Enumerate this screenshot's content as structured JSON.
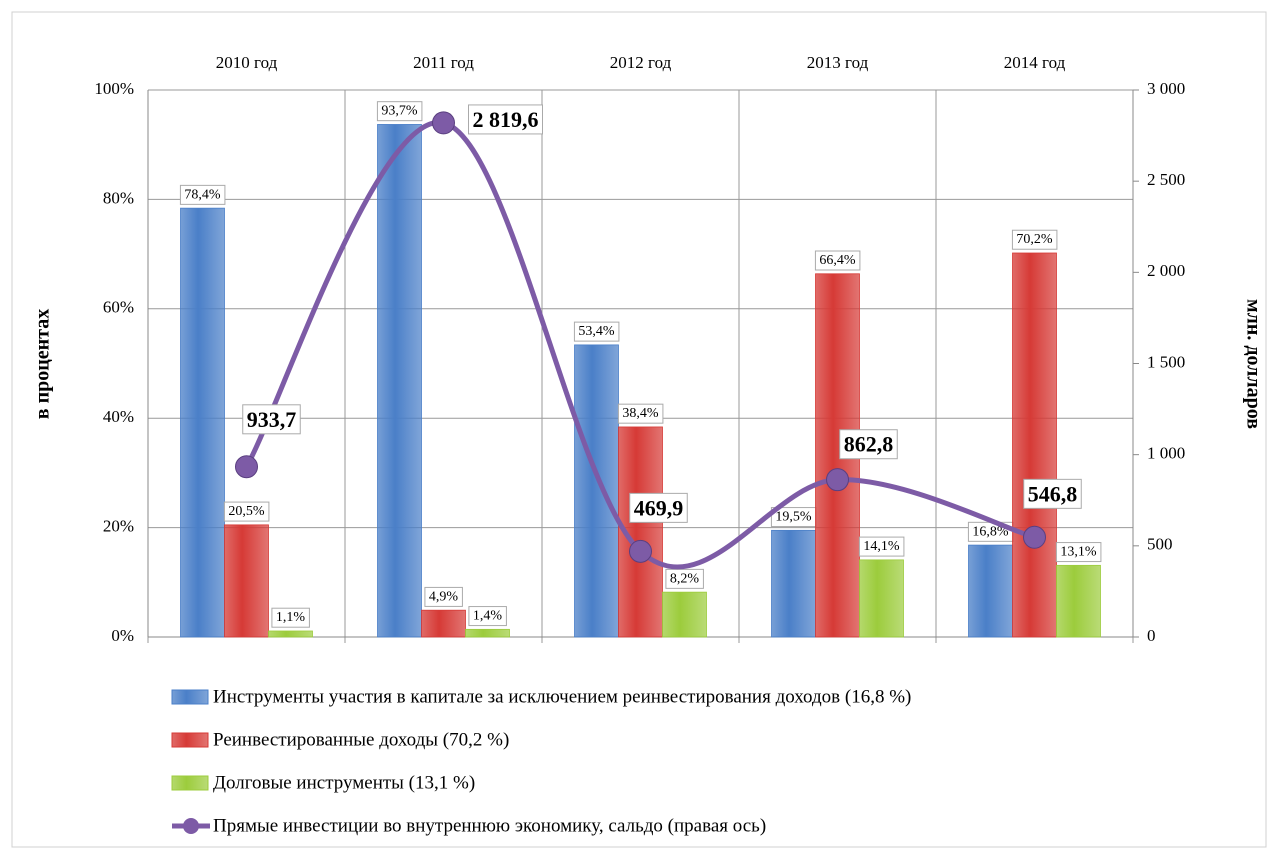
{
  "chart_data": {
    "type": "bar",
    "categories": [
      "2010 год",
      "2011 год",
      "2012 год",
      "2013 год",
      "2014 год"
    ],
    "ylabel": "в процентах",
    "y2label": "млн. долларов",
    "ylim": [
      0,
      100
    ],
    "yticks": [
      {
        "value": 0,
        "label": "0%"
      },
      {
        "value": 20,
        "label": "20%"
      },
      {
        "value": 40,
        "label": "40%"
      },
      {
        "value": 60,
        "label": "60%"
      },
      {
        "value": 80,
        "label": "80%"
      },
      {
        "value": 100,
        "label": "100%"
      }
    ],
    "y2lim": [
      0,
      3000
    ],
    "y2ticks": [
      0,
      500,
      {
        "value": 1000,
        "label": "1 000"
      },
      {
        "value": 1500,
        "label": "1 500"
      },
      {
        "value": 2000,
        "label": "2 000"
      },
      {
        "value": 2500,
        "label": "2 500"
      },
      {
        "value": 3000,
        "label": "3 000"
      }
    ],
    "grid": true,
    "series": [
      {
        "name": "Инструменты участия в капитале за исключением реинвестирования доходов (16,8 %)",
        "color": "#4a7fc8",
        "values": [
          78.4,
          93.7,
          53.4,
          19.5,
          16.8
        ],
        "value_labels": [
          "78,4%",
          "93,7%",
          "53,4%",
          "19,5%",
          "16,8%"
        ]
      },
      {
        "name": "Реинвестированные доходы (70,2 %)",
        "color": "#d63a36",
        "values": [
          20.5,
          4.9,
          38.4,
          66.4,
          70.2
        ],
        "value_labels": [
          "20,5%",
          "4,9%",
          "38,4%",
          "66,4%",
          "70,2%"
        ]
      },
      {
        "name": "Долговые инструменты (13,1 %)",
        "color": "#9ccc3c",
        "values": [
          1.1,
          1.4,
          8.2,
          14.1,
          13.1
        ],
        "value_labels": [
          "1,1%",
          "1,4%",
          "8,2%",
          "14,1%",
          "13,1%"
        ]
      },
      {
        "name": "Прямые инвестиции во внутреннюю экономику, сальдо (правая ось)",
        "color": "#7d5ba6",
        "type": "line",
        "axis": "y2",
        "values": [
          933.7,
          2819.6,
          469.9,
          862.8,
          546.8
        ],
        "value_labels": [
          "933,7",
          "2 819,6",
          "469,9",
          "862,8",
          "546,8"
        ]
      }
    ]
  }
}
